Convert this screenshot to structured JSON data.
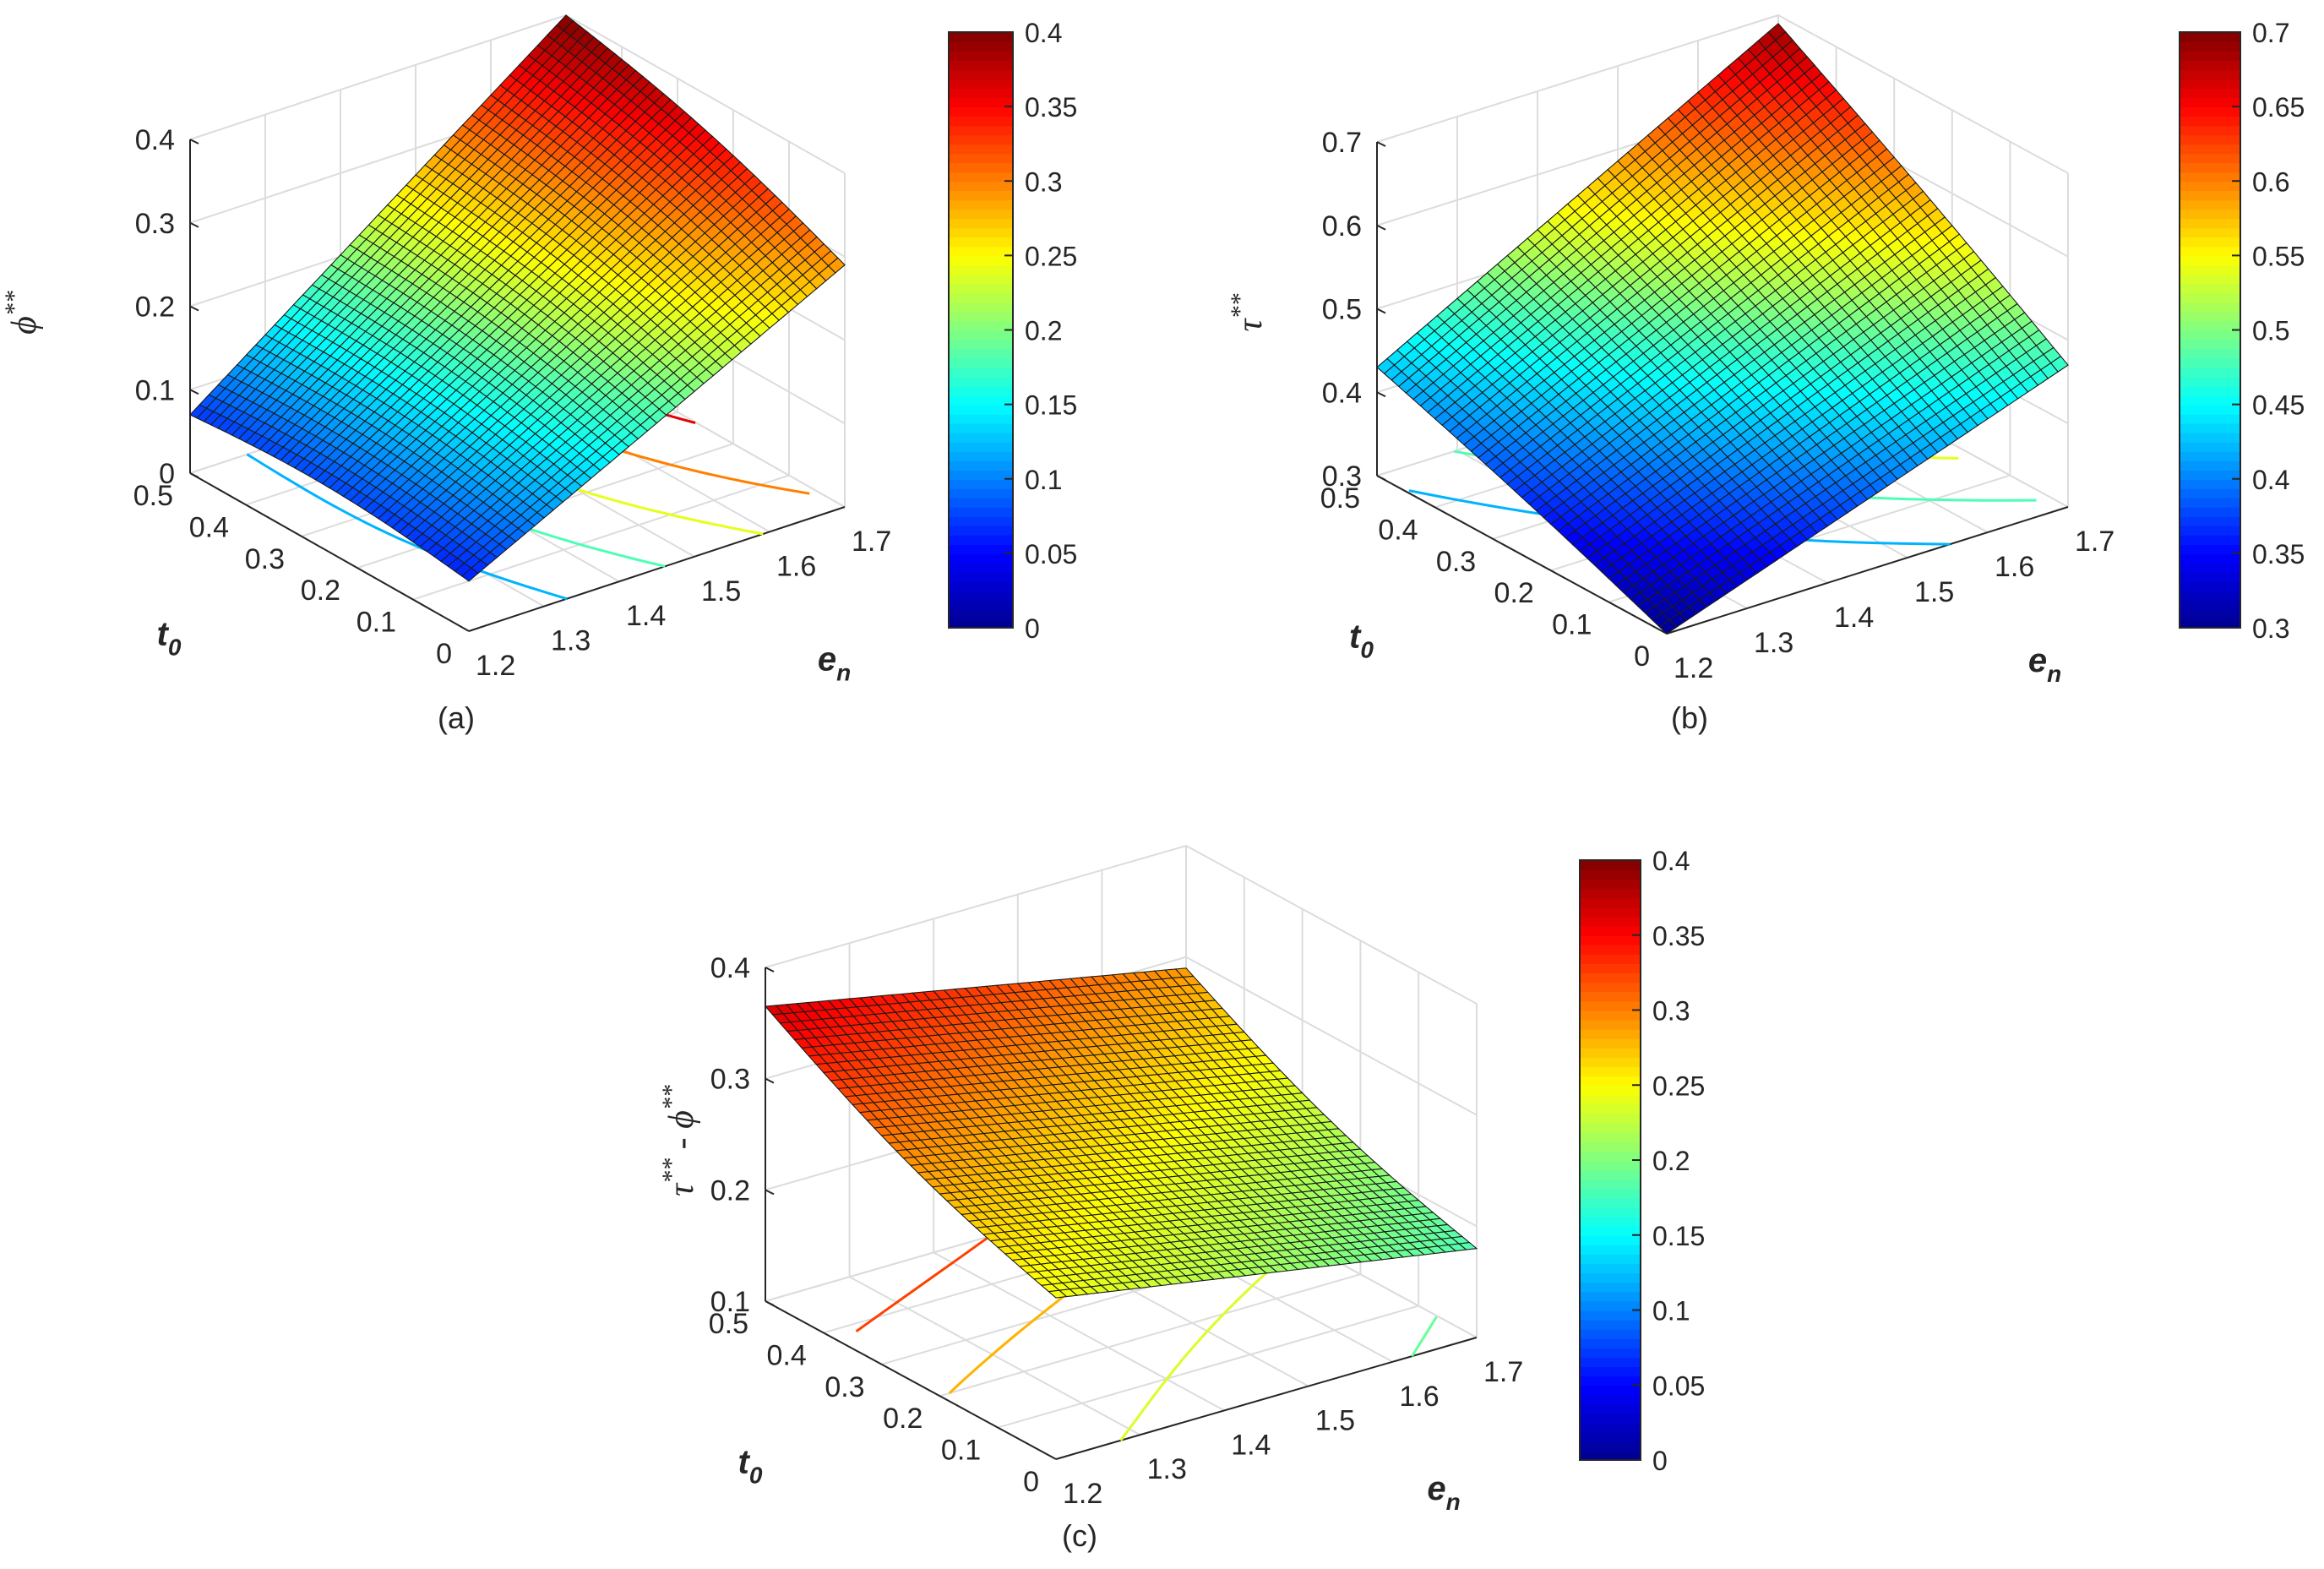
{
  "chart_data": [
    {
      "type": "surface3d",
      "caption": "(a)",
      "xlabel": "t",
      "xlabel_sub": "0",
      "ylabel": "e",
      "ylabel_sub": "n",
      "zlabel": "ϕ",
      "zlabel_sup": "**",
      "xlim": [
        0,
        0.5
      ],
      "ylim": [
        1.2,
        1.7
      ],
      "zlim": [
        0,
        0.4
      ],
      "xticks": [
        "0.5",
        "0.4",
        "0.3",
        "0.2",
        "0.1",
        "0"
      ],
      "yticks": [
        "1.2",
        "1.3",
        "1.4",
        "1.5",
        "1.6",
        "1.7"
      ],
      "zticks": [
        "0",
        "0.1",
        "0.2",
        "0.3",
        "0.4"
      ],
      "corners": {
        "t0_0_en_1.2": 0.06,
        "t0_0.5_en_1.2": 0.07,
        "t0_0_en_1.7": 0.29,
        "t0_0.5_en_1.7": 0.4
      },
      "colorbar": {
        "min": 0,
        "max": 0.4,
        "ticks": [
          "0",
          "0.05",
          "0.1",
          "0.15",
          "0.2",
          "0.25",
          "0.3",
          "0.35",
          "0.4"
        ]
      },
      "grid": true
    },
    {
      "type": "surface3d",
      "caption": "(b)",
      "xlabel": "t",
      "xlabel_sub": "0",
      "ylabel": "e",
      "ylabel_sub": "n",
      "zlabel": "τ",
      "zlabel_sup": "**",
      "xlim": [
        0,
        0.5
      ],
      "ylim": [
        1.2,
        1.7
      ],
      "zlim": [
        0.3,
        0.7
      ],
      "xticks": [
        "0.5",
        "0.4",
        "0.3",
        "0.2",
        "0.1",
        "0"
      ],
      "yticks": [
        "1.2",
        "1.3",
        "1.4",
        "1.5",
        "1.6",
        "1.7"
      ],
      "zticks": [
        "0.3",
        "0.4",
        "0.5",
        "0.6",
        "0.7"
      ],
      "corners": {
        "t0_0_en_1.2": 0.3,
        "t0_0.5_en_1.2": 0.43,
        "t0_0_en_1.7": 0.47,
        "t0_0.5_en_1.7": 0.69
      },
      "colorbar": {
        "min": 0.3,
        "max": 0.7,
        "ticks": [
          "0.3",
          "0.35",
          "0.4",
          "0.45",
          "0.5",
          "0.55",
          "0.6",
          "0.65",
          "0.7"
        ]
      },
      "grid": true
    },
    {
      "type": "surface3d",
      "caption": "(c)",
      "xlabel": "t",
      "xlabel_sub": "0",
      "ylabel": "e",
      "ylabel_sub": "n",
      "zlabel": "τ",
      "zlabel_sup": "**",
      "zlabel_mid": " - ",
      "zlabel2": "ϕ",
      "zlabel2_sup": "**",
      "xlim": [
        0,
        0.5
      ],
      "ylim": [
        1.2,
        1.7
      ],
      "zlim": [
        0.1,
        0.4
      ],
      "xticks": [
        "0.5",
        "0.4",
        "0.3",
        "0.2",
        "0.1",
        "0"
      ],
      "yticks": [
        "1.2",
        "1.3",
        "1.4",
        "1.5",
        "1.6",
        "1.7"
      ],
      "zticks": [
        "0.1",
        "0.2",
        "0.3",
        "0.4"
      ],
      "corners": {
        "t0_0_en_1.2": 0.245,
        "t0_0.5_en_1.2": 0.365,
        "t0_0_en_1.7": 0.18,
        "t0_0.5_en_1.7": 0.29
      },
      "colorbar": {
        "min": 0,
        "max": 0.4,
        "ticks": [
          "0",
          "0.05",
          "0.1",
          "0.15",
          "0.2",
          "0.25",
          "0.3",
          "0.35",
          "0.4"
        ]
      },
      "grid": true
    }
  ],
  "colors": {
    "colormap": [
      "#00008f",
      "#0000ff",
      "#0080ff",
      "#00ffff",
      "#80ff80",
      "#ffff00",
      "#ff8000",
      "#ff0000",
      "#800000"
    ],
    "mesh": "#1a1a1a",
    "grid": "#dcdcdc",
    "axis": "#262626"
  }
}
